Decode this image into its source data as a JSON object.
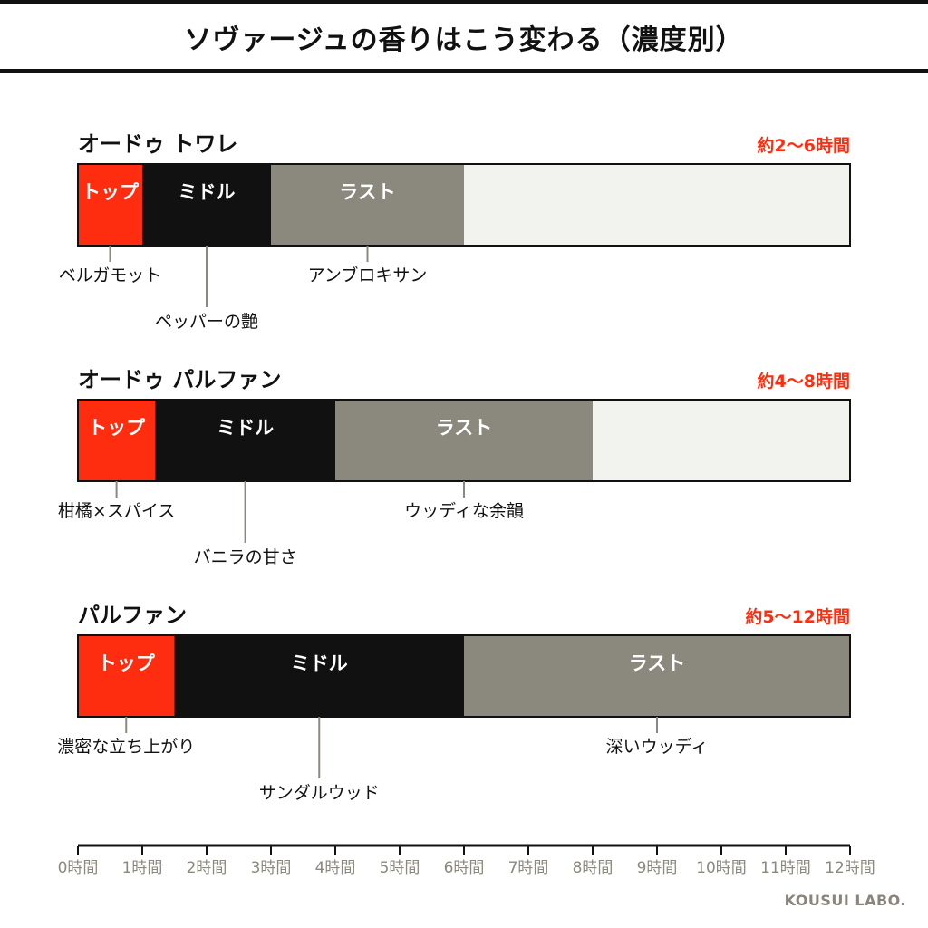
{
  "title": "ソヴァージュの香りはこう変わる（濃度別）",
  "brand": "KOUSUI LABO.",
  "colors": {
    "top": "#ff2d10",
    "middle": "#111111",
    "last": "#8b887d",
    "remainder": "#f2f2ee",
    "duration_text": "#ff2d10",
    "leader": "#8b887d",
    "tick_text": "#8b887d"
  },
  "chart_data": {
    "type": "bar",
    "orientation": "horizontal-stacked-timeline",
    "x_unit": "時間",
    "xlim": [
      0,
      12
    ],
    "x_ticks": [
      0,
      1,
      2,
      3,
      4,
      5,
      6,
      7,
      8,
      9,
      10,
      11,
      12
    ],
    "x_tick_labels": [
      "0時間",
      "1時間",
      "2時間",
      "3時間",
      "4時間",
      "5時間",
      "6時間",
      "7時間",
      "8時間",
      "9時間",
      "10時間",
      "11時間",
      "12時間"
    ],
    "rows": [
      {
        "name": "オードゥ トワレ",
        "duration": "約2〜6時間",
        "segments": [
          {
            "label": "トップ",
            "start": 0,
            "end": 1.0,
            "color": "#ff2d10"
          },
          {
            "label": "ミドル",
            "start": 1.0,
            "end": 3.0,
            "color": "#111111"
          },
          {
            "label": "ラスト",
            "start": 3.0,
            "end": 6.0,
            "color": "#8b887d"
          },
          {
            "label": "",
            "start": 6.0,
            "end": 12,
            "color": "#f2f2ee"
          }
        ],
        "annotations": [
          {
            "text": "ベルガモット",
            "at": 0.5,
            "level": 1
          },
          {
            "text": "ペッパーの艶",
            "at": 2.0,
            "level": 2
          },
          {
            "text": "アンブロキサン",
            "at": 4.5,
            "level": 1
          }
        ]
      },
      {
        "name": "オードゥ パルファン",
        "duration": "約4〜8時間",
        "segments": [
          {
            "label": "トップ",
            "start": 0,
            "end": 1.2,
            "color": "#ff2d10"
          },
          {
            "label": "ミドル",
            "start": 1.2,
            "end": 4.0,
            "color": "#111111"
          },
          {
            "label": "ラスト",
            "start": 4.0,
            "end": 8.0,
            "color": "#8b887d"
          },
          {
            "label": "",
            "start": 8.0,
            "end": 12,
            "color": "#f2f2ee"
          }
        ],
        "annotations": [
          {
            "text": "柑橘×スパイス",
            "at": 0.6,
            "level": 1
          },
          {
            "text": "バニラの甘さ",
            "at": 2.6,
            "level": 2
          },
          {
            "text": "ウッディな余韻",
            "at": 6.0,
            "level": 1
          }
        ]
      },
      {
        "name": "パルファン",
        "duration": "約5〜12時間",
        "segments": [
          {
            "label": "トップ",
            "start": 0,
            "end": 1.5,
            "color": "#ff2d10"
          },
          {
            "label": "ミドル",
            "start": 1.5,
            "end": 6.0,
            "color": "#111111"
          },
          {
            "label": "ラスト",
            "start": 6.0,
            "end": 12.0,
            "color": "#8b887d"
          }
        ],
        "annotations": [
          {
            "text": "濃密な立ち上がり",
            "at": 0.75,
            "level": 1
          },
          {
            "text": "サンダルウッド",
            "at": 3.75,
            "level": 2
          },
          {
            "text": "深いウッディ",
            "at": 9.0,
            "level": 1
          }
        ]
      }
    ]
  }
}
